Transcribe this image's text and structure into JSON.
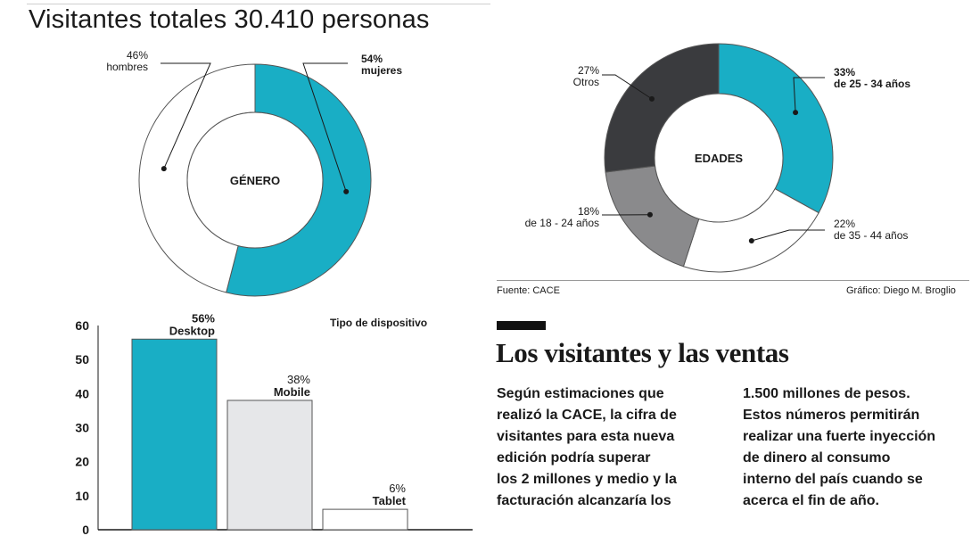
{
  "header": {
    "title": "Visitantes totales 30.410 personas"
  },
  "chart_data": [
    {
      "type": "donut",
      "center_label": "GÉNERO",
      "slices": [
        {
          "pct_label": "54%",
          "name": "mujeres",
          "value": 54,
          "color": "#19aec5"
        },
        {
          "pct_label": "46%",
          "name": "hombres",
          "value": 46,
          "color": "#ffffff"
        }
      ]
    },
    {
      "type": "donut",
      "center_label": "EDADES",
      "slices": [
        {
          "pct_label": "33%",
          "name": "de 25 - 34 años",
          "value": 33,
          "color": "#19aec5"
        },
        {
          "pct_label": "22%",
          "name": "de 35 - 44 años",
          "value": 22,
          "color": "#ffffff"
        },
        {
          "pct_label": "18%",
          "name": "de 18 - 24 años",
          "value": 18,
          "color": "#8a8a8c"
        },
        {
          "pct_label": "27%",
          "name": "Otros",
          "value": 27,
          "color": "#3a3b3e"
        }
      ]
    },
    {
      "type": "bar",
      "title": "Tipo de dispositivo",
      "ylim": [
        0,
        60
      ],
      "yticks": [
        0,
        10,
        20,
        30,
        40,
        50,
        60
      ],
      "categories": [
        "Desktop",
        "Mobile",
        "Tablet"
      ],
      "values": [
        56,
        38,
        6
      ],
      "value_labels": [
        "56%",
        "38%",
        "6%"
      ],
      "colors": [
        "#19aec5",
        "#e6e7e9",
        "#ffffff"
      ]
    }
  ],
  "footer": {
    "source": "Fuente: CACE",
    "credit": "Gráfico: Diego M. Broglio"
  },
  "article": {
    "title": "Los visitantes y las ventas",
    "col1": [
      "Según estimaciones que",
      "realizó la CACE, la cifra de",
      "visitantes para esta nueva",
      "edición podría superar",
      "los 2 millones y medio y la",
      "facturación alcanzaría los"
    ],
    "col2": [
      "1.500 millones de pesos.",
      "Estos números permitirán",
      "realizar una fuerte inyección",
      "de dinero al consumo",
      "interno del país cuando se",
      "acerca el fin de año."
    ]
  }
}
